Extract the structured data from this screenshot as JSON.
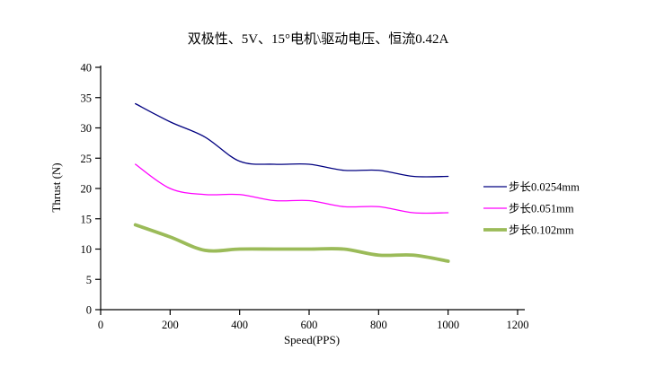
{
  "window": {
    "background": "#ffffff"
  },
  "chart_data": {
    "type": "line",
    "title": "双极性、5V、15°电机\\驱动电压、恒流0.42A",
    "xlabel": "Speed(PPS)",
    "ylabel": "Thrust (N)",
    "x": [
      100,
      200,
      300,
      400,
      500,
      600,
      700,
      800,
      900,
      1000
    ],
    "xlim": [
      0,
      1200
    ],
    "xtick_step": 200,
    "xticks": [
      0,
      200,
      400,
      600,
      800,
      1000,
      1200
    ],
    "ylim": [
      0,
      40
    ],
    "ytick_step": 5,
    "yticks": [
      0,
      5,
      10,
      15,
      20,
      25,
      30,
      35,
      40
    ],
    "grid": false,
    "legend_position": "right",
    "smooth": true,
    "series": [
      {
        "name": "步长0.0254mm",
        "color": "#000080",
        "stroke_width": 1.3,
        "values": [
          34,
          31,
          28.5,
          24.5,
          24,
          24,
          23,
          23,
          22,
          22
        ]
      },
      {
        "name": "步长0.051mm",
        "color": "#FF00FF",
        "stroke_width": 1.3,
        "values": [
          24,
          20,
          19,
          19,
          18,
          18,
          17,
          17,
          16,
          16
        ]
      },
      {
        "name": "步长0.102mm",
        "color": "#9BBB59",
        "stroke_width": 3.8,
        "values": [
          14,
          12,
          9.8,
          10,
          10,
          10,
          10,
          9,
          9,
          8
        ]
      }
    ],
    "axis_color": "#000000",
    "text_color": "#000000"
  }
}
